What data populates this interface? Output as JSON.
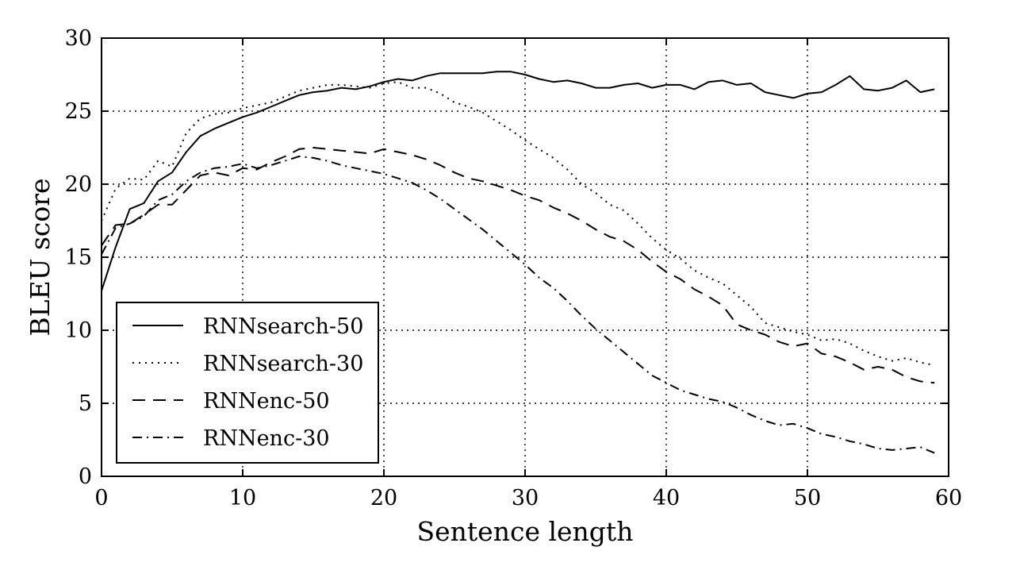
{
  "chart_data": {
    "type": "line",
    "title": "",
    "xlabel": "Sentence length",
    "ylabel": "BLEU score",
    "xlim": [
      0,
      60
    ],
    "ylim": [
      0,
      30
    ],
    "xticks": [
      0,
      10,
      20,
      30,
      40,
      50,
      60
    ],
    "yticks": [
      0,
      5,
      10,
      15,
      20,
      25,
      30
    ],
    "grid": true,
    "legend_position": "lower-left",
    "x": [
      0,
      1,
      2,
      3,
      4,
      5,
      6,
      7,
      8,
      9,
      10,
      11,
      12,
      13,
      14,
      15,
      16,
      17,
      18,
      19,
      20,
      21,
      22,
      23,
      24,
      25,
      26,
      27,
      28,
      29,
      30,
      31,
      32,
      33,
      34,
      35,
      36,
      37,
      38,
      39,
      40,
      41,
      42,
      43,
      44,
      45,
      46,
      47,
      48,
      49,
      50,
      51,
      52,
      53,
      54,
      55,
      56,
      57,
      58,
      59
    ],
    "series": [
      {
        "name": "RNNsearch-50",
        "style": "solid",
        "values": [
          12.7,
          15.7,
          18.3,
          18.7,
          20.2,
          20.8,
          22.2,
          23.3,
          23.8,
          24.2,
          24.6,
          24.9,
          25.3,
          25.7,
          26.1,
          26.3,
          26.4,
          26.6,
          26.5,
          26.7,
          27.0,
          27.2,
          27.1,
          27.4,
          27.6,
          27.6,
          27.6,
          27.6,
          27.7,
          27.7,
          27.5,
          27.2,
          27.0,
          27.1,
          26.9,
          26.6,
          26.6,
          26.8,
          26.9,
          26.6,
          26.8,
          26.8,
          26.5,
          27.0,
          27.1,
          26.8,
          26.9,
          26.3,
          26.1,
          25.9,
          26.2,
          26.3,
          26.8,
          27.4,
          26.5,
          26.4,
          26.6,
          27.1,
          26.3,
          26.5
        ]
      },
      {
        "name": "RNNsearch-30",
        "style": "dotted",
        "values": [
          17.5,
          19.7,
          20.4,
          20.3,
          21.6,
          21.2,
          23.5,
          24.5,
          24.8,
          24.9,
          25.2,
          25.4,
          25.6,
          26.0,
          26.4,
          26.6,
          26.8,
          26.8,
          26.7,
          26.6,
          26.9,
          27.0,
          26.6,
          26.6,
          26.2,
          25.6,
          25.3,
          24.9,
          24.3,
          23.7,
          23.0,
          22.4,
          21.8,
          21.0,
          20.0,
          19.4,
          18.6,
          18.2,
          17.3,
          16.3,
          15.5,
          14.9,
          14.1,
          13.6,
          13.2,
          12.4,
          11.6,
          10.5,
          10.2,
          9.9,
          9.7,
          9.3,
          9.4,
          9.1,
          8.6,
          8.2,
          7.9,
          8.1,
          7.8,
          7.6
        ]
      },
      {
        "name": "RNNenc-50",
        "style": "dashed",
        "values": [
          15.8,
          17.2,
          17.3,
          17.9,
          18.6,
          18.6,
          19.6,
          20.6,
          20.8,
          20.6,
          21.1,
          21.0,
          21.5,
          21.9,
          22.4,
          22.5,
          22.4,
          22.3,
          22.2,
          22.1,
          22.4,
          22.2,
          22.0,
          21.7,
          21.3,
          20.8,
          20.4,
          20.2,
          19.9,
          19.6,
          19.2,
          18.9,
          18.4,
          18.0,
          17.5,
          16.9,
          16.4,
          16.1,
          15.5,
          14.7,
          14.0,
          13.5,
          12.8,
          12.3,
          11.7,
          10.4,
          10.0,
          9.7,
          9.2,
          8.9,
          9.1,
          8.4,
          8.2,
          7.8,
          7.3,
          7.5,
          7.3,
          6.8,
          6.5,
          6.4
        ]
      },
      {
        "name": "RNNenc-30",
        "style": "dashdot",
        "values": [
          15.2,
          17.0,
          17.3,
          17.8,
          18.9,
          19.3,
          20.2,
          20.8,
          21.1,
          21.2,
          21.4,
          21.1,
          21.3,
          21.6,
          21.9,
          21.8,
          21.6,
          21.3,
          21.1,
          20.9,
          20.7,
          20.4,
          20.1,
          19.6,
          19.0,
          18.3,
          17.6,
          16.9,
          16.1,
          15.3,
          14.5,
          13.6,
          12.9,
          12.0,
          11.0,
          10.1,
          9.3,
          8.5,
          7.7,
          6.9,
          6.4,
          5.9,
          5.6,
          5.3,
          5.1,
          4.7,
          4.2,
          3.8,
          3.5,
          3.6,
          3.3,
          2.9,
          2.7,
          2.4,
          2.2,
          1.9,
          1.8,
          1.9,
          2.0,
          1.6
        ]
      }
    ]
  }
}
